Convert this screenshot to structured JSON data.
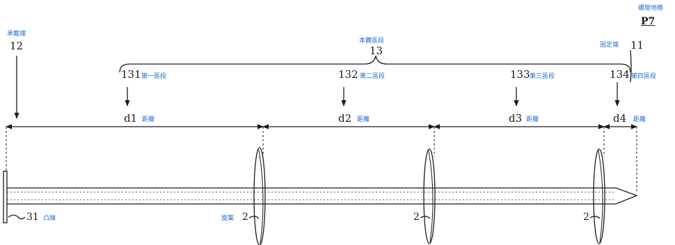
{
  "figure": {
    "figure_id": "P7",
    "figure_title_cn": "螺旋地樁"
  },
  "parts": {
    "bearing_end": {
      "number": "12",
      "label": "承載端"
    },
    "body_section": {
      "number": "13",
      "label": "本體區段"
    },
    "fixed_end": {
      "number": "11",
      "label": "固定端"
    },
    "section1": {
      "number": "131",
      "label": "第一區段"
    },
    "section2": {
      "number": "132",
      "label": "第二區段"
    },
    "section3": {
      "number": "133",
      "label": "第三區段"
    },
    "section4": {
      "number": "134",
      "label": "第四區段"
    },
    "flange": {
      "number": "31",
      "label": "凸緣"
    },
    "blade": {
      "number": "2",
      "label": "旋葉"
    }
  },
  "distances": {
    "d1": {
      "symbol": "d1",
      "label": "距離"
    },
    "d2": {
      "symbol": "d2",
      "label": "距離"
    },
    "d3": {
      "symbol": "d3",
      "label": "距離"
    },
    "d4": {
      "symbol": "d4",
      "label": "距離"
    }
  },
  "colors": {
    "ink": "#1a1a1a",
    "annotation": "#1f6fd1"
  }
}
